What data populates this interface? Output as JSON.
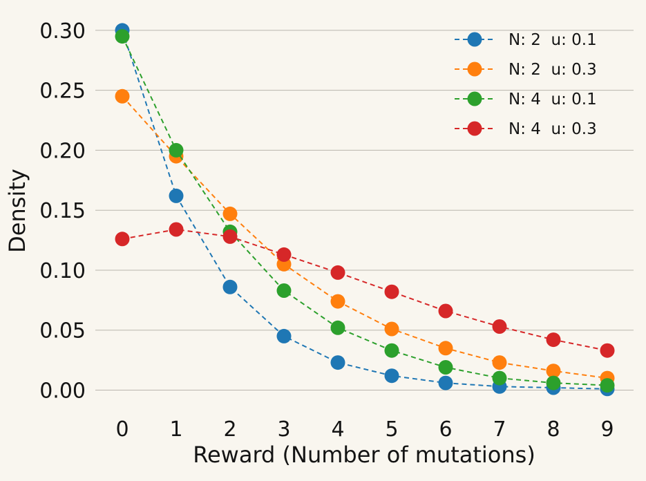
{
  "figure": {
    "background_color": "#f9f6ef",
    "grid_color": "#b9b5ad",
    "text_color": "#141414"
  },
  "chart_data": {
    "type": "line",
    "title": "",
    "xlabel": "Reward (Number of mutations)",
    "ylabel": "Density",
    "line_style": "dashed",
    "marker": "circle",
    "grid": "horizontal-only",
    "legend_position": "upper-right",
    "legend_frame": false,
    "x": [
      0,
      1,
      2,
      3,
      4,
      5,
      6,
      7,
      8,
      9
    ],
    "xtick_labels": [
      "0",
      "1",
      "2",
      "3",
      "4",
      "5",
      "6",
      "7",
      "8",
      "9"
    ],
    "xlim": [
      -0.5,
      9.5
    ],
    "ylim": [
      0.0,
      0.3
    ],
    "yticks": [
      0.0,
      0.05,
      0.1,
      0.15,
      0.2,
      0.25,
      0.3
    ],
    "ytick_labels": [
      "0.00",
      "0.05",
      "0.10",
      "0.15",
      "0.20",
      "0.25",
      "0.30"
    ],
    "series": [
      {
        "name": "N: 2  u: 0.1",
        "color": "#1f77b4",
        "values": [
          0.3,
          0.162,
          0.086,
          0.045,
          0.023,
          0.012,
          0.006,
          0.003,
          0.002,
          0.001
        ]
      },
      {
        "name": "N: 2  u: 0.3",
        "color": "#ff7f0e",
        "values": [
          0.245,
          0.195,
          0.147,
          0.105,
          0.074,
          0.051,
          0.035,
          0.023,
          0.016,
          0.01
        ]
      },
      {
        "name": "N: 4  u: 0.1",
        "color": "#2ca02c",
        "values": [
          0.295,
          0.2,
          0.132,
          0.083,
          0.052,
          0.033,
          0.019,
          0.01,
          0.006,
          0.004
        ]
      },
      {
        "name": "N: 4  u: 0.3",
        "color": "#d62728",
        "values": [
          0.126,
          0.134,
          0.128,
          0.113,
          0.098,
          0.082,
          0.066,
          0.053,
          0.042,
          0.033
        ]
      }
    ]
  }
}
